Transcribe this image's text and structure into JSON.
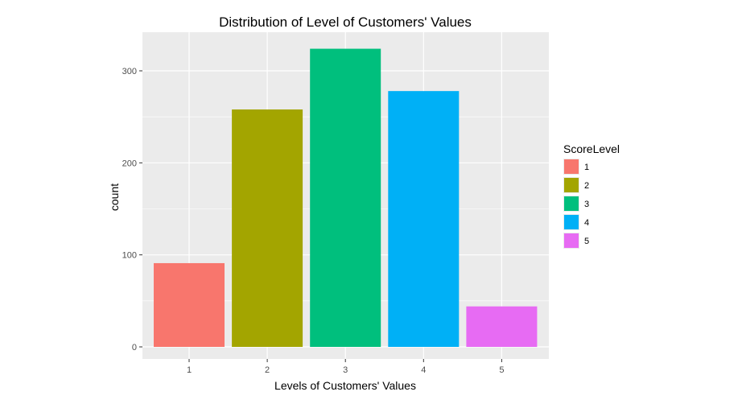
{
  "chart_data": {
    "type": "bar",
    "title": "Distribution of Level of Customers' Values",
    "xlabel": "Levels of Customers' Values",
    "ylabel": "count",
    "categories": [
      "1",
      "2",
      "3",
      "4",
      "5"
    ],
    "values": [
      91,
      258,
      324,
      278,
      44
    ],
    "colors": [
      "#F8766D",
      "#A3A500",
      "#00BF7D",
      "#00B0F6",
      "#E76BF3"
    ],
    "ylim": [
      0,
      340
    ],
    "yticks": [
      0,
      100,
      200,
      300
    ],
    "yticks_minor": [
      50,
      150,
      250
    ],
    "grid": true,
    "panel_background": "#EBEBEB",
    "legend": {
      "title": "ScoreLevel",
      "position": "right",
      "items": [
        "1",
        "2",
        "3",
        "4",
        "5"
      ]
    }
  }
}
